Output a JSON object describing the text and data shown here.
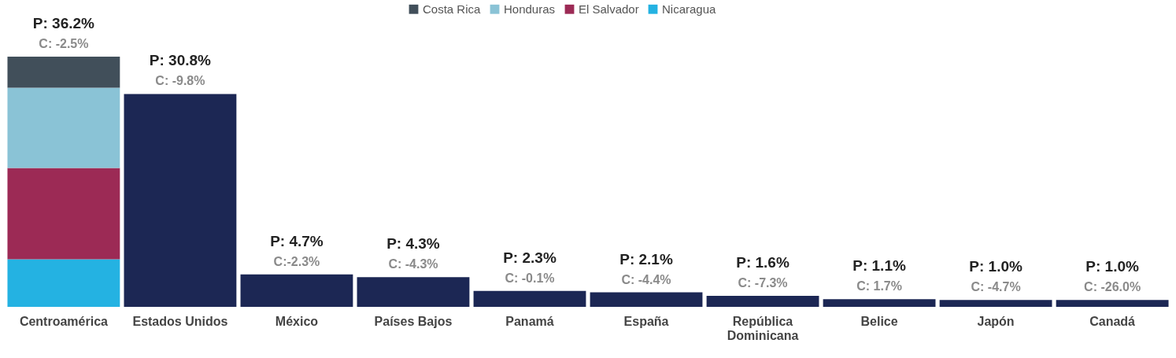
{
  "chart_data": {
    "type": "bar",
    "stacked": true,
    "categories": [
      "Centroamérica",
      "Estados Unidos",
      "México",
      "Países Bajos",
      "Panamá",
      "España",
      "República Dominicana",
      "Belice",
      "Japón",
      "Canadá"
    ],
    "series": [
      {
        "name": "Nicaragua",
        "color": "#24b2e2",
        "values": [
          6.9,
          null,
          null,
          null,
          null,
          null,
          null,
          null,
          null,
          null
        ]
      },
      {
        "name": "El Salvador",
        "color": "#9c2a55",
        "values": [
          13.2,
          null,
          null,
          null,
          null,
          null,
          null,
          null,
          null,
          null
        ]
      },
      {
        "name": "Honduras",
        "color": "#8ac3d6",
        "values": [
          11.6,
          null,
          null,
          null,
          null,
          null,
          null,
          null,
          null,
          null
        ]
      },
      {
        "name": "Costa Rica",
        "color": "#414f5a",
        "values": [
          4.5,
          null,
          null,
          null,
          null,
          null,
          null,
          null,
          null,
          null
        ]
      },
      {
        "color": "#1c2754",
        "values": [
          null,
          30.8,
          4.7,
          4.3,
          2.3,
          2.1,
          1.6,
          1.1,
          1.0,
          1.0
        ],
        "value_labels": [
          null,
          "P: 30.8%",
          "P: 4.7%",
          "P: 4.3%",
          "P: 2.3%",
          "P: 2.1%",
          "P: 1.6%",
          "P: 1.1%",
          "P: 1.0%",
          "P: 1.0%"
        ]
      }
    ],
    "totals": [
      "P: 36.2%",
      null,
      null,
      null,
      null,
      null,
      null,
      null,
      null,
      null
    ],
    "annotations": [
      {
        "text": "C: -2.5%",
        "x": "Centroamérica",
        "y": 36.2
      },
      {
        "text": "C: -9.8%",
        "x": "Estados Unidos",
        "y": 30.8
      },
      {
        "text": "C:-2.3%",
        "x": "México",
        "y": 4.7
      },
      {
        "text": "C: -4.3%",
        "x": "Países Bajos",
        "y": 4.3
      },
      {
        "text": "C: -0.1%",
        "x": "Panamá",
        "y": 2.3
      },
      {
        "text": "C: -4.4%",
        "x": "España",
        "y": 2.1
      },
      {
        "text": "C: -7.3%",
        "x": "República Dominicana",
        "y": 1.6
      },
      {
        "text": "C: 1.7%",
        "x": "Belice",
        "y": 1.1
      },
      {
        "text": "C: -4.7%",
        "x": "Japón",
        "y": 1.0
      },
      {
        "text": "C: -26.0%",
        "x": "Canadá",
        "y": 1.0
      }
    ],
    "legend": "top",
    "grid": false
  }
}
